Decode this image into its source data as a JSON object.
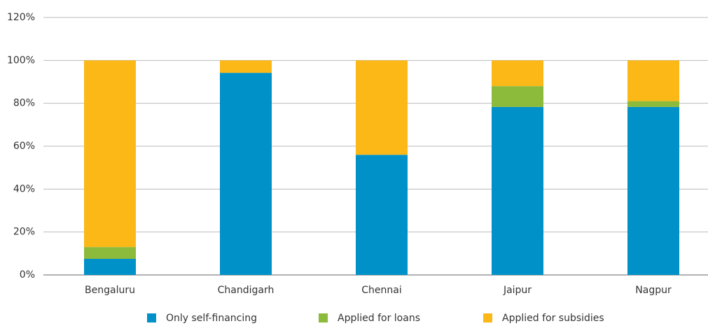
{
  "chart_data": {
    "type": "stacked_bar",
    "categories": [
      "Bengaluru",
      "Chandigarh",
      "Chennai",
      "Jaipur",
      "Nagpur"
    ],
    "series": [
      {
        "name": "Only self-financing",
        "color": "#0091c9",
        "values": [
          7.5,
          94.2,
          56,
          78.3,
          78.3
        ]
      },
      {
        "name": "Applied for loans",
        "color": "#8cba3b",
        "values": [
          5.5,
          0,
          0,
          9.7,
          2.7
        ]
      },
      {
        "name": "Applied for subsidies",
        "color": "#fbb817",
        "values": [
          87,
          5.8,
          44,
          12,
          19
        ]
      }
    ],
    "ylim": [
      0,
      120
    ],
    "yticks": [
      {
        "value": 0,
        "label": "0%"
      },
      {
        "value": 20,
        "label": "20%"
      },
      {
        "value": 40,
        "label": "40%"
      },
      {
        "value": 60,
        "label": "60%"
      },
      {
        "value": 80,
        "label": "80%"
      },
      {
        "value": 100,
        "label": "100%"
      },
      {
        "value": 120,
        "label": "120%"
      }
    ],
    "grid": true,
    "legend": "bottom"
  }
}
